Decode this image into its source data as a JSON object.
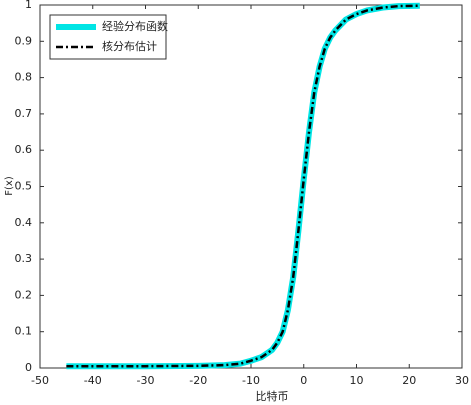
{
  "chart_data": {
    "type": "line",
    "x_label": "比特币",
    "y_label": "F(x)",
    "x": [
      -45,
      -40,
      -30,
      -20,
      -15,
      -12,
      -10,
      -8,
      -6,
      -5,
      -4,
      -3,
      -2,
      -1,
      0,
      1,
      2,
      3,
      4,
      5,
      6,
      8,
      10,
      12,
      15,
      18,
      22
    ],
    "series": [
      {
        "name": "经验分布函数",
        "color": "#00e5e5",
        "linestyle": "solid",
        "linewidth": 6,
        "values": [
          0.005,
          0.005,
          0.005,
          0.006,
          0.008,
          0.012,
          0.02,
          0.03,
          0.05,
          0.07,
          0.1,
          0.16,
          0.25,
          0.38,
          0.52,
          0.65,
          0.76,
          0.83,
          0.88,
          0.91,
          0.93,
          0.96,
          0.975,
          0.985,
          0.993,
          0.997,
          0.998
        ]
      },
      {
        "name": "核分布估计",
        "color": "#000000",
        "linestyle": "dashdot",
        "linewidth": 2.5,
        "values": [
          0.005,
          0.005,
          0.005,
          0.006,
          0.008,
          0.012,
          0.02,
          0.03,
          0.05,
          0.07,
          0.1,
          0.16,
          0.25,
          0.38,
          0.52,
          0.65,
          0.76,
          0.83,
          0.88,
          0.91,
          0.93,
          0.96,
          0.975,
          0.985,
          0.993,
          0.997,
          0.998
        ]
      }
    ],
    "xlim": [
      -50,
      30
    ],
    "xticks": [
      -50,
      -40,
      -30,
      -20,
      -10,
      0,
      10,
      20,
      30
    ],
    "ylim": [
      0,
      1
    ],
    "yticks": [
      0,
      0.1,
      0.2,
      0.3,
      0.4,
      0.5,
      0.6,
      0.7,
      0.8,
      0.9,
      1
    ],
    "legend_loc": "upper left",
    "grid": false
  }
}
